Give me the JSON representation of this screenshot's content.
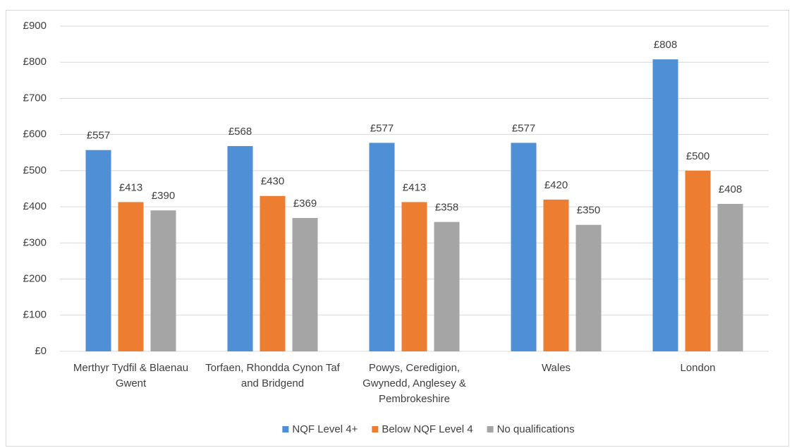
{
  "chart_data": {
    "type": "bar",
    "categories": [
      "Merthyr Tydfil & Blaenau Gwent",
      "Torfaen, Rhondda Cynon Taf and Bridgend",
      "Powys, Ceredigion, Gwynedd, Anglesey & Pembrokeshire",
      "Wales",
      "London"
    ],
    "series": [
      {
        "name": "NQF Level 4+",
        "color": "#4f8fd6",
        "values": [
          557,
          568,
          577,
          577,
          808
        ],
        "value_labels": [
          "£557",
          "£568",
          "£577",
          "£577",
          "£808"
        ]
      },
      {
        "name": "Below NQF Level 4",
        "color": "#ed7d31",
        "values": [
          413,
          430,
          413,
          420,
          500
        ],
        "value_labels": [
          "£413",
          "£430",
          "£413",
          "£420",
          "£500"
        ]
      },
      {
        "name": "No qualifications",
        "color": "#a5a5a5",
        "values": [
          390,
          369,
          358,
          350,
          408
        ],
        "value_labels": [
          "£390",
          "£369",
          "£358",
          "£350",
          "£408"
        ]
      }
    ],
    "ylim": [
      0,
      900
    ],
    "yticks": [
      {
        "value": 0,
        "label": "£0"
      },
      {
        "value": 100,
        "label": "£100"
      },
      {
        "value": 200,
        "label": "£200"
      },
      {
        "value": 300,
        "label": "£300"
      },
      {
        "value": 400,
        "label": "£400"
      },
      {
        "value": 500,
        "label": "£500"
      },
      {
        "value": 600,
        "label": "£600"
      },
      {
        "value": 700,
        "label": "£700"
      },
      {
        "value": 800,
        "label": "£800"
      },
      {
        "value": 900,
        "label": "£900"
      }
    ],
    "grid": true,
    "legend": "bottom"
  }
}
